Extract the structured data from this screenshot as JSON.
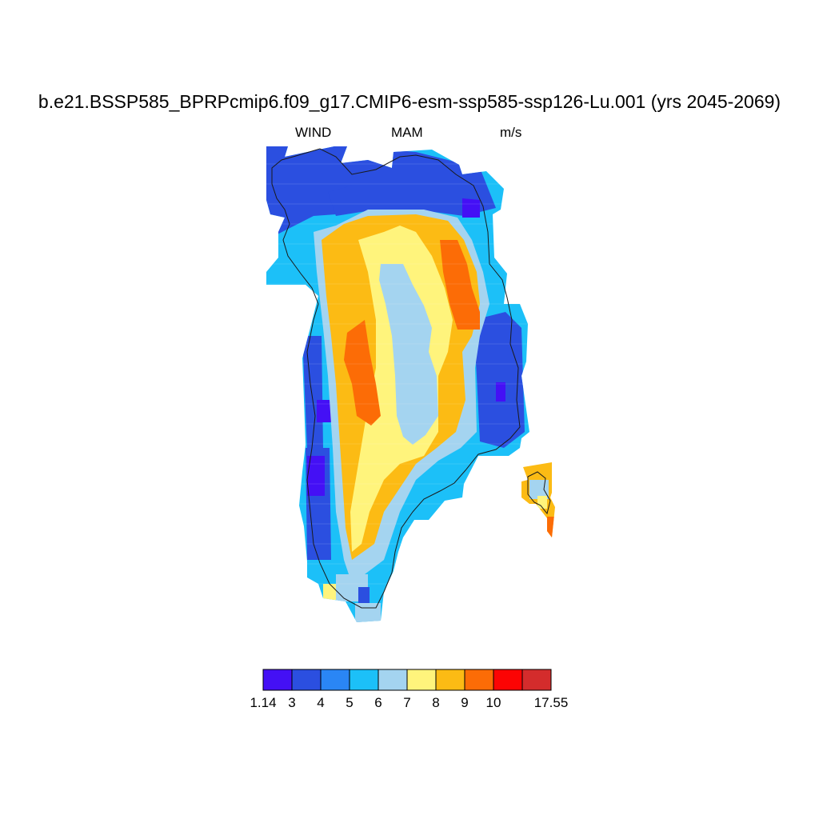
{
  "title": "b.e21.BSSP585_BPRPcmip6.f09_g17.CMIP6-esm-ssp585-ssp126-Lu.001 (yrs 2045-2069)",
  "subtitle": {
    "left": "WIND",
    "center": "MAM",
    "right": "m/s"
  },
  "colorbar": {
    "colors": [
      "#4410f5",
      "#2b4fe0",
      "#2a86f5",
      "#1cc0f8",
      "#a4d4f0",
      "#fff47c",
      "#fcbb14",
      "#fc6c06",
      "#fc0404",
      "#d42c2c"
    ],
    "labels": [
      "1.14",
      "3",
      "4",
      "5",
      "6",
      "7",
      "8",
      "9",
      "10",
      "17.55"
    ]
  }
}
